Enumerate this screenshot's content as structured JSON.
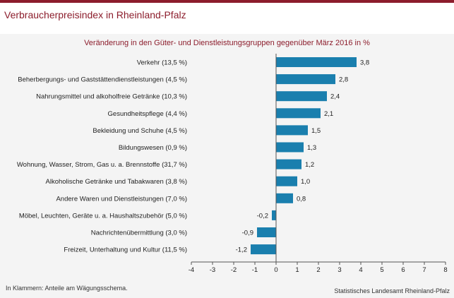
{
  "header": {
    "title": "Verbraucherpreisindex in Rheinland-Pfalz"
  },
  "footer": {
    "footnote": "In Klammern: Anteile am Wägungsschema.",
    "source": "Statistisches Landesamt Rheinland-Pfalz"
  },
  "colors": {
    "accent": "#8c1d2c",
    "bar": "#1a7fae",
    "panel": "#f4f4f4"
  },
  "chart_data": {
    "type": "bar",
    "orientation": "horizontal",
    "title": "Veränderung in den Güter- und Dienstleistungsgruppen gegenüber März 2016 in %",
    "categories": [
      "Verkehr (13,5 %)",
      "Beherbergungs- und Gaststättendienstleistungen (4,5 %)",
      "Nahrungsmittel und alkoholfreie Getränke (10,3 %)",
      "Gesundheitspflege (4,4 %)",
      "Bekleidung und Schuhe (4,5 %)",
      "Bildungswesen (0,9 %)",
      "Wohnung, Wasser, Strom, Gas u. a. Brennstoffe (31,7 %)",
      "Alkoholische Getränke und Tabakwaren (3,8 %)",
      "Andere Waren und Dienstleistungen (7,0 %)",
      "Möbel, Leuchten, Geräte u. a. Haushaltszubehör  (5,0 %)",
      "Nachrichtenübermittlung (3,0 %)",
      "Freizeit, Unterhaltung und Kultur (11,5 %)"
    ],
    "values": [
      3.8,
      2.8,
      2.4,
      2.1,
      1.5,
      1.3,
      1.2,
      1.0,
      0.8,
      -0.2,
      -0.9,
      -1.2
    ],
    "value_labels": [
      "3,8",
      "2,8",
      "2,4",
      "2,1",
      "1,5",
      "1,3",
      "1,2",
      "1,0",
      "0,8",
      "-0,2",
      "-0,9",
      "-1,2"
    ],
    "xlim": [
      -4,
      8
    ],
    "xticks": [
      -4,
      -3,
      -2,
      -1,
      0,
      1,
      2,
      3,
      4,
      5,
      6,
      7,
      8
    ],
    "grid": false,
    "legend": "none"
  }
}
